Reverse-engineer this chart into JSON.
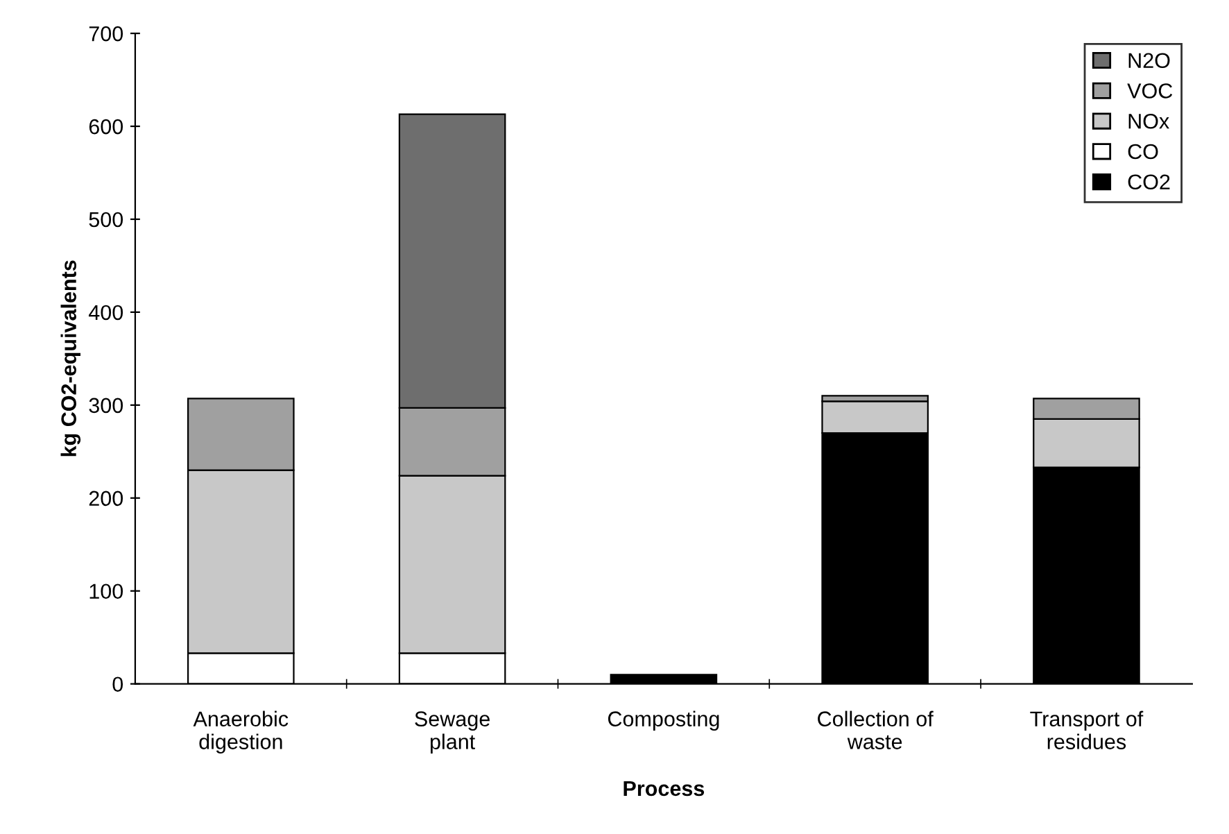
{
  "chart_data": {
    "type": "bar",
    "stacked": true,
    "xlabel": "Process",
    "ylabel": "kg CO2-equivalents",
    "categories": [
      "Anaerobic\ndigestion",
      "Sewage\nplant",
      "Composting",
      "Collection of\nwaste",
      "Transport of\nresidues"
    ],
    "series": [
      {
        "name": "CO2",
        "color": "#000000",
        "values": [
          null,
          null,
          10,
          270,
          233
        ]
      },
      {
        "name": "CO",
        "color": "#ffffff",
        "values": [
          33,
          33,
          null,
          null,
          null
        ]
      },
      {
        "name": "NOx",
        "color": "#c8c8c8",
        "values": [
          197,
          191,
          null,
          34,
          52
        ]
      },
      {
        "name": "VOC",
        "color": "#a0a0a0",
        "values": [
          77,
          73,
          null,
          6,
          22
        ]
      },
      {
        "name": "N2O",
        "color": "#6e6e6e",
        "values": [
          null,
          316,
          null,
          null,
          null
        ]
      }
    ],
    "ylim": [
      0,
      700
    ],
    "yticks": [
      0,
      100,
      200,
      300,
      400,
      500,
      600,
      700
    ],
    "grid": false,
    "legend": "top right"
  }
}
